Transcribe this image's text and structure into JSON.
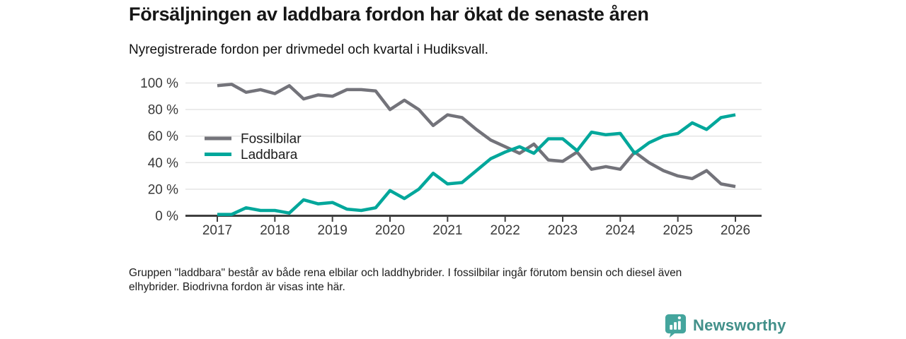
{
  "header": {
    "title": "Försäljningen av laddbara fordon har ökat de senaste åren",
    "subtitle": "Nyregistrerade fordon per drivmedel och kvartal i Hudiksvall."
  },
  "chart_data": {
    "type": "line",
    "unit": "%",
    "frequency": "quarterly",
    "x_start": "2017 Q1",
    "x_end": "2026 Q1",
    "x_tick_labels": [
      "2017",
      "2018",
      "2019",
      "2020",
      "2021",
      "2022",
      "2023",
      "2024",
      "2025",
      "2026"
    ],
    "y_ticks": [
      0,
      20,
      40,
      60,
      80,
      100
    ],
    "y_tick_labels": [
      "0 %",
      "20 %",
      "40 %",
      "60 %",
      "80 %",
      "100 %"
    ],
    "ylim": [
      0,
      100
    ],
    "grid": "horizontal",
    "legend_position": "inside-left",
    "series": [
      {
        "name": "Fossilbilar",
        "color": "#73737a",
        "values": [
          98,
          99,
          93,
          95,
          92,
          98,
          88,
          91,
          90,
          95,
          95,
          94,
          80,
          87,
          80,
          68,
          76,
          74,
          65,
          57,
          52,
          47,
          54,
          42,
          41,
          48,
          35,
          37,
          35,
          48,
          40,
          34,
          30,
          28,
          34,
          24,
          22
        ]
      },
      {
        "name": "Laddbara",
        "color": "#00a79b",
        "values": [
          1,
          1,
          6,
          4,
          4,
          2,
          12,
          9,
          10,
          5,
          4,
          6,
          19,
          13,
          20,
          32,
          24,
          25,
          34,
          43,
          48,
          52,
          47,
          58,
          58,
          49,
          63,
          61,
          62,
          47,
          55,
          60,
          62,
          70,
          65,
          74,
          76
        ]
      }
    ]
  },
  "footnote": {
    "line1": "Gruppen \"laddbara\" består av både rena elbilar och laddhybrider. I fossilbilar ingår förutom bensin och diesel även",
    "line2": "elhybrider. Biodrivna fordon är visas inte här."
  },
  "logo": {
    "text": "Newsworthy",
    "badge_color": "#44a59d",
    "text_color": "#42908a"
  }
}
